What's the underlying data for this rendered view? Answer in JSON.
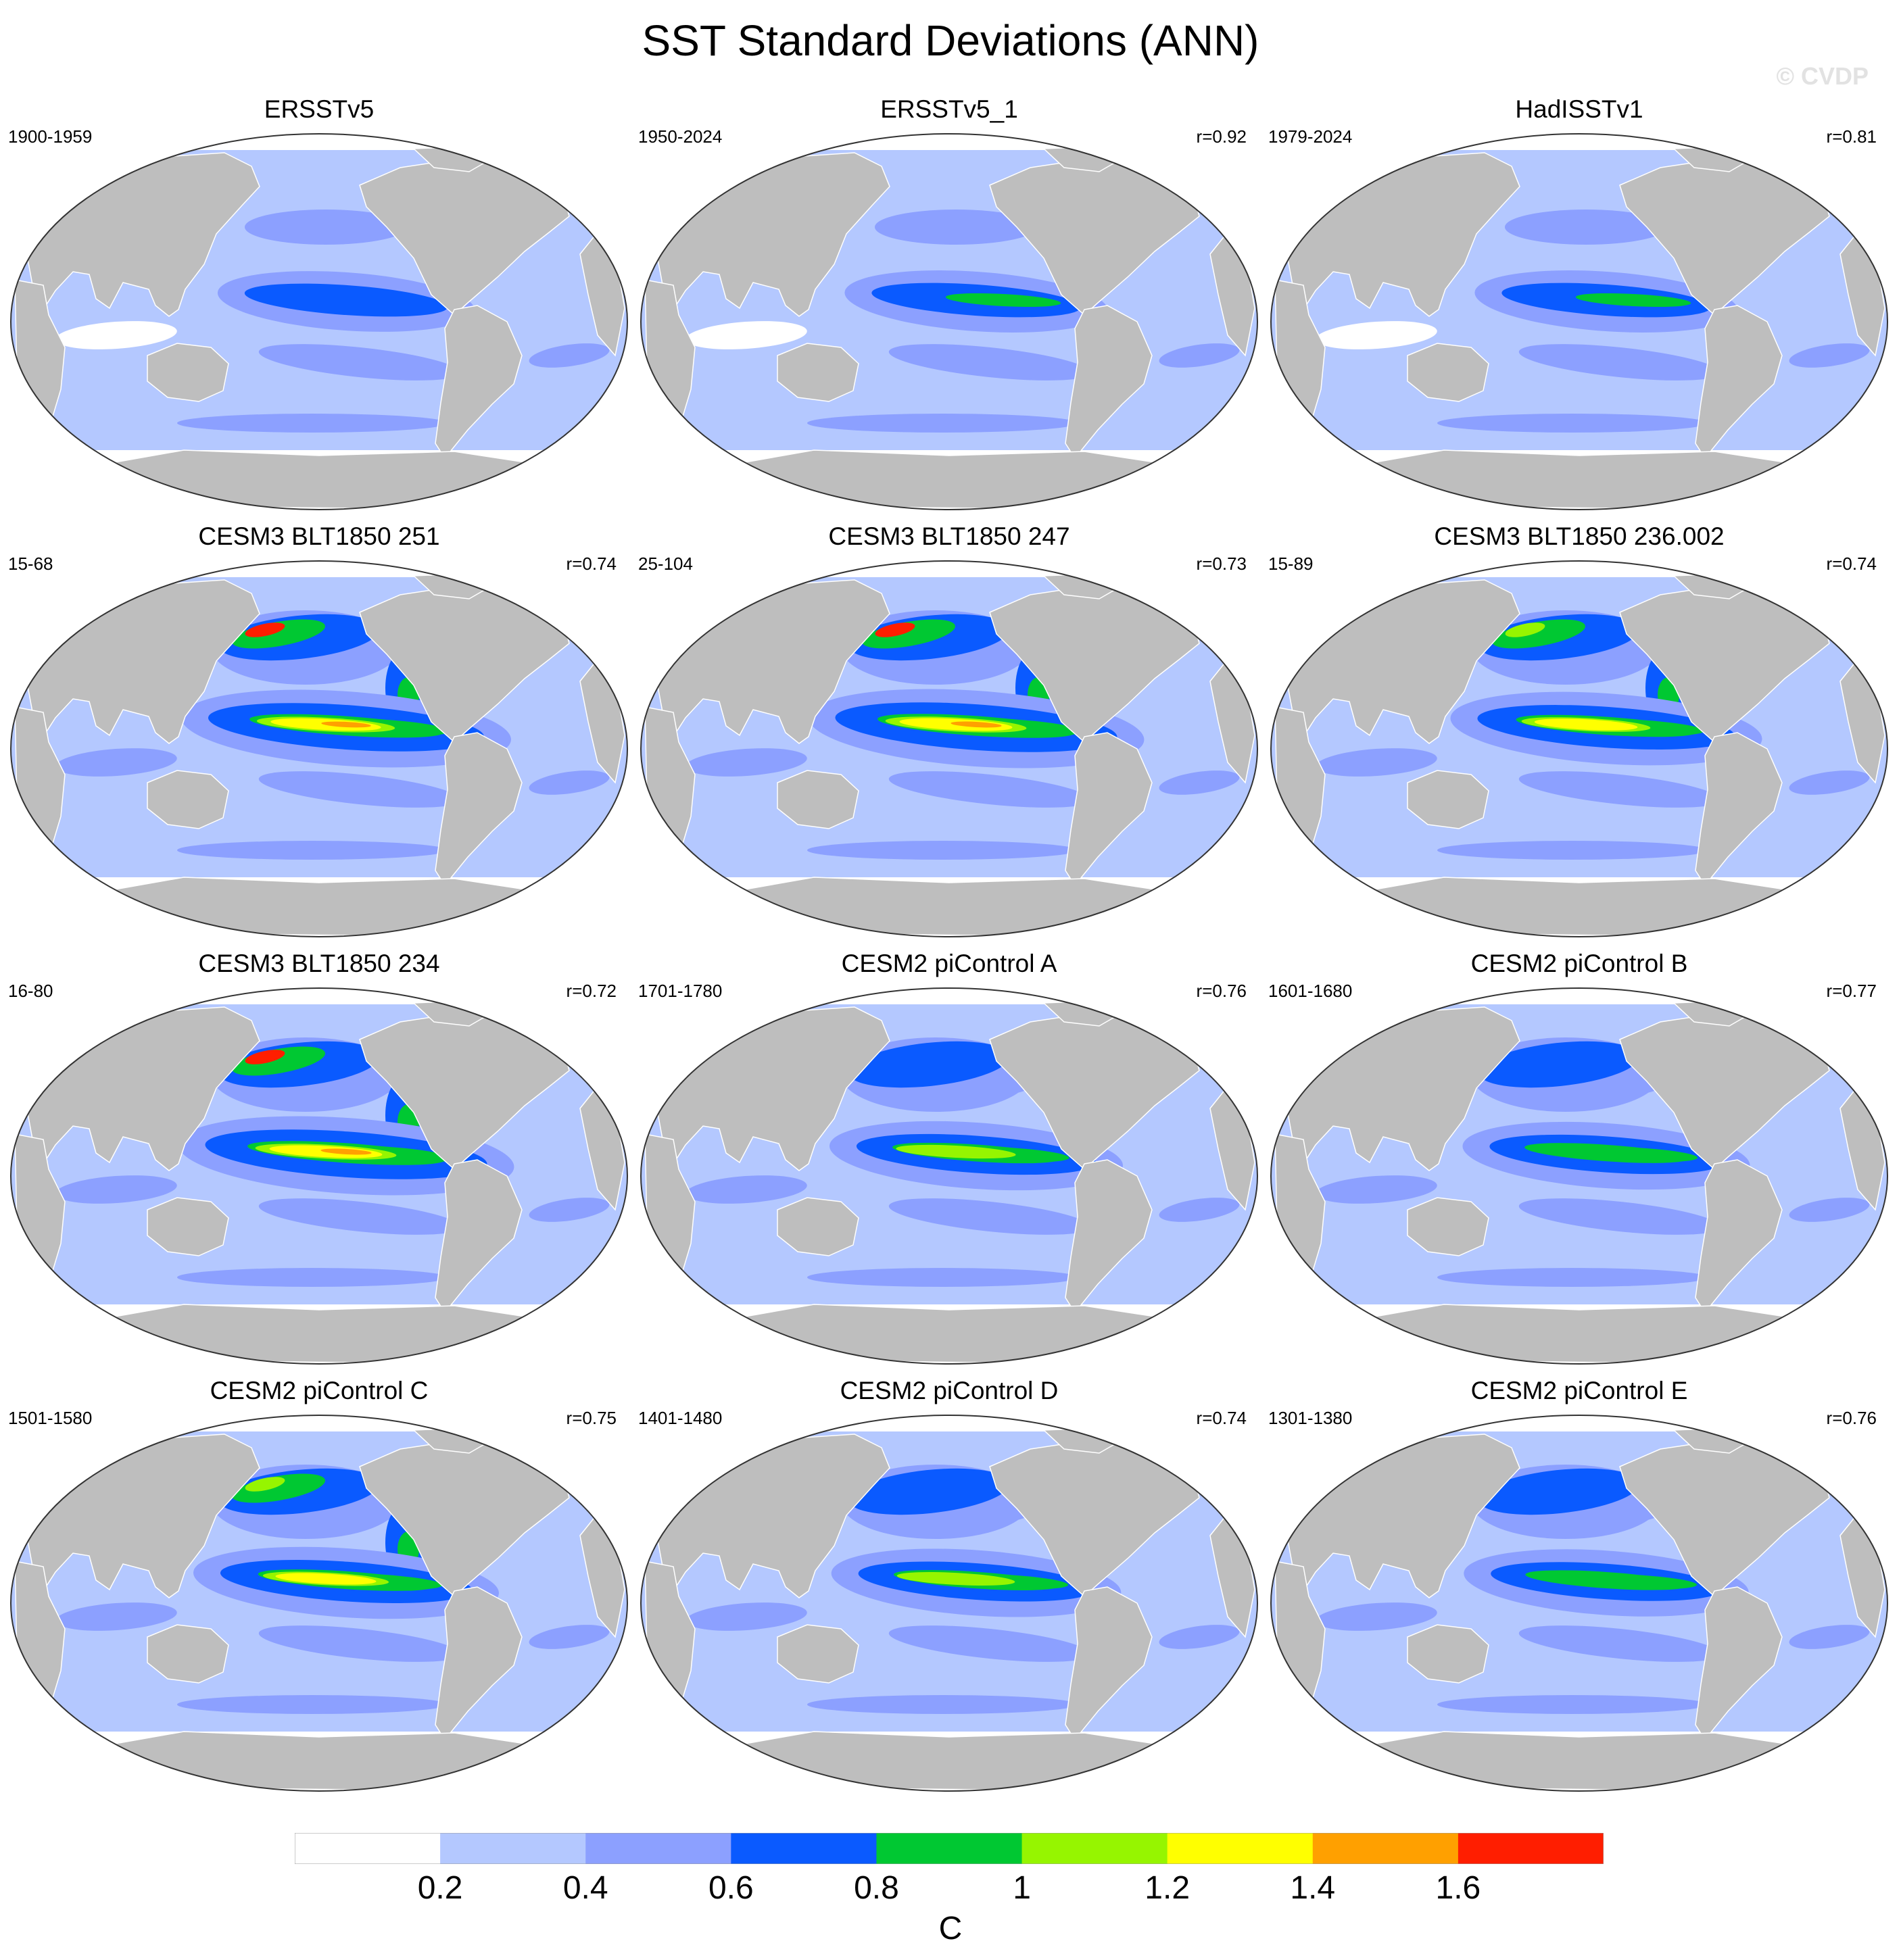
{
  "title": "SST Standard Deviations (ANN)",
  "watermark": "© CVDP",
  "colors": {
    "land": "#bebebe",
    "levels": [
      "#ffffff",
      "#b4c8ff",
      "#8ca0ff",
      "#0a5aff",
      "#00c832",
      "#96f500",
      "#ffff00",
      "#ffa000",
      "#ff1e00"
    ]
  },
  "panels": [
    {
      "title": "ERSSTv5",
      "period": "1900-1959",
      "corr": "",
      "intensity": 0.45
    },
    {
      "title": "ERSSTv5_1",
      "period": "1950-2024",
      "corr": "r=0.92",
      "intensity": 0.5
    },
    {
      "title": "HadISSTv1",
      "period": "1979-2024",
      "corr": "r=0.81",
      "intensity": 0.5
    },
    {
      "title": "CESM3 BLT1850 251",
      "period": "15-68",
      "corr": "r=0.74",
      "intensity": 1.05
    },
    {
      "title": "CESM3 BLT1850 247",
      "period": "25-104",
      "corr": "r=0.73",
      "intensity": 1.1
    },
    {
      "title": "CESM3 BLT1850 236.002",
      "period": "15-89",
      "corr": "r=0.74",
      "intensity": 0.9
    },
    {
      "title": "CESM3 BLT1850 234",
      "period": "16-80",
      "corr": "r=0.72",
      "intensity": 1.1
    },
    {
      "title": "CESM2 piControl A",
      "period": "1701-1780",
      "corr": "r=0.76",
      "intensity": 0.75
    },
    {
      "title": "CESM2 piControl B",
      "period": "1601-1680",
      "corr": "r=0.77",
      "intensity": 0.7
    },
    {
      "title": "CESM2 piControl C",
      "period": "1501-1580",
      "corr": "r=0.75",
      "intensity": 0.85
    },
    {
      "title": "CESM2 piControl D",
      "period": "1401-1480",
      "corr": "r=0.74",
      "intensity": 0.72
    },
    {
      "title": "CESM2 piControl E",
      "period": "1301-1380",
      "corr": "r=0.76",
      "intensity": 0.68
    }
  ],
  "colorbar": {
    "ticks": [
      "0.2",
      "0.4",
      "0.6",
      "0.8",
      "1",
      "1.2",
      "1.4",
      "1.6"
    ],
    "unit": "C"
  }
}
